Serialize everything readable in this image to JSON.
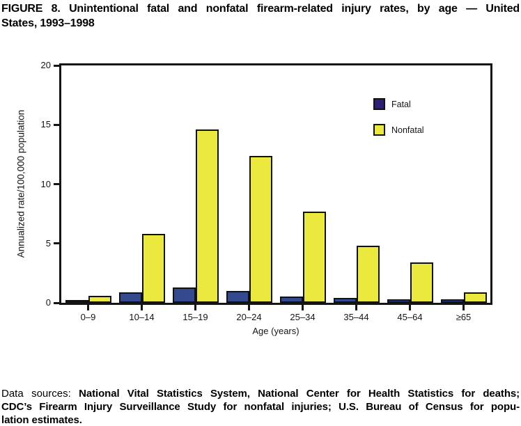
{
  "title": {
    "line1": "FIGURE 8. Unintentional fatal and nonfatal firearm-related injury rates, by age — United",
    "line2": "States, 1993–1998"
  },
  "chart_data": {
    "type": "bar",
    "title": "FIGURE 8. Unintentional fatal and nonfatal firearm-related injury rates, by age — United States, 1993–1998",
    "categories": [
      "0–9",
      "10–14",
      "15–19",
      "20–24",
      "25–34",
      "35–44",
      "45–64",
      "≥65"
    ],
    "series": [
      {
        "name": "Fatal",
        "values": [
          0.1,
          0.9,
          1.3,
          1.0,
          0.5,
          0.4,
          0.3,
          0.3
        ],
        "bar_color": "#35498f",
        "legend_color": "#2c2076"
      },
      {
        "name": "Nonfatal",
        "values": [
          0.6,
          5.8,
          14.6,
          12.4,
          7.7,
          4.8,
          3.4,
          0.9
        ],
        "bar_color": "#ece93e",
        "legend_color": "#ece93e"
      }
    ],
    "xlabel": "Age (years)",
    "ylabel": "Annualized rate/100,000 population",
    "ylim": [
      0,
      20
    ],
    "yticks": [
      0,
      5,
      10,
      15,
      20
    ],
    "legend_position": "upper-right-inside",
    "grid": false,
    "axis_color": "#151515"
  },
  "footer": {
    "prefix": "Data sources:",
    "line1_rest": "National Vital Statistics System, National Center for Health Statistics for deaths;",
    "line2": "CDC’s Firearm Injury Surveillance Study for nonfatal injuries; U.S. Bureau of Census for popu-",
    "line3": "lation estimates."
  }
}
